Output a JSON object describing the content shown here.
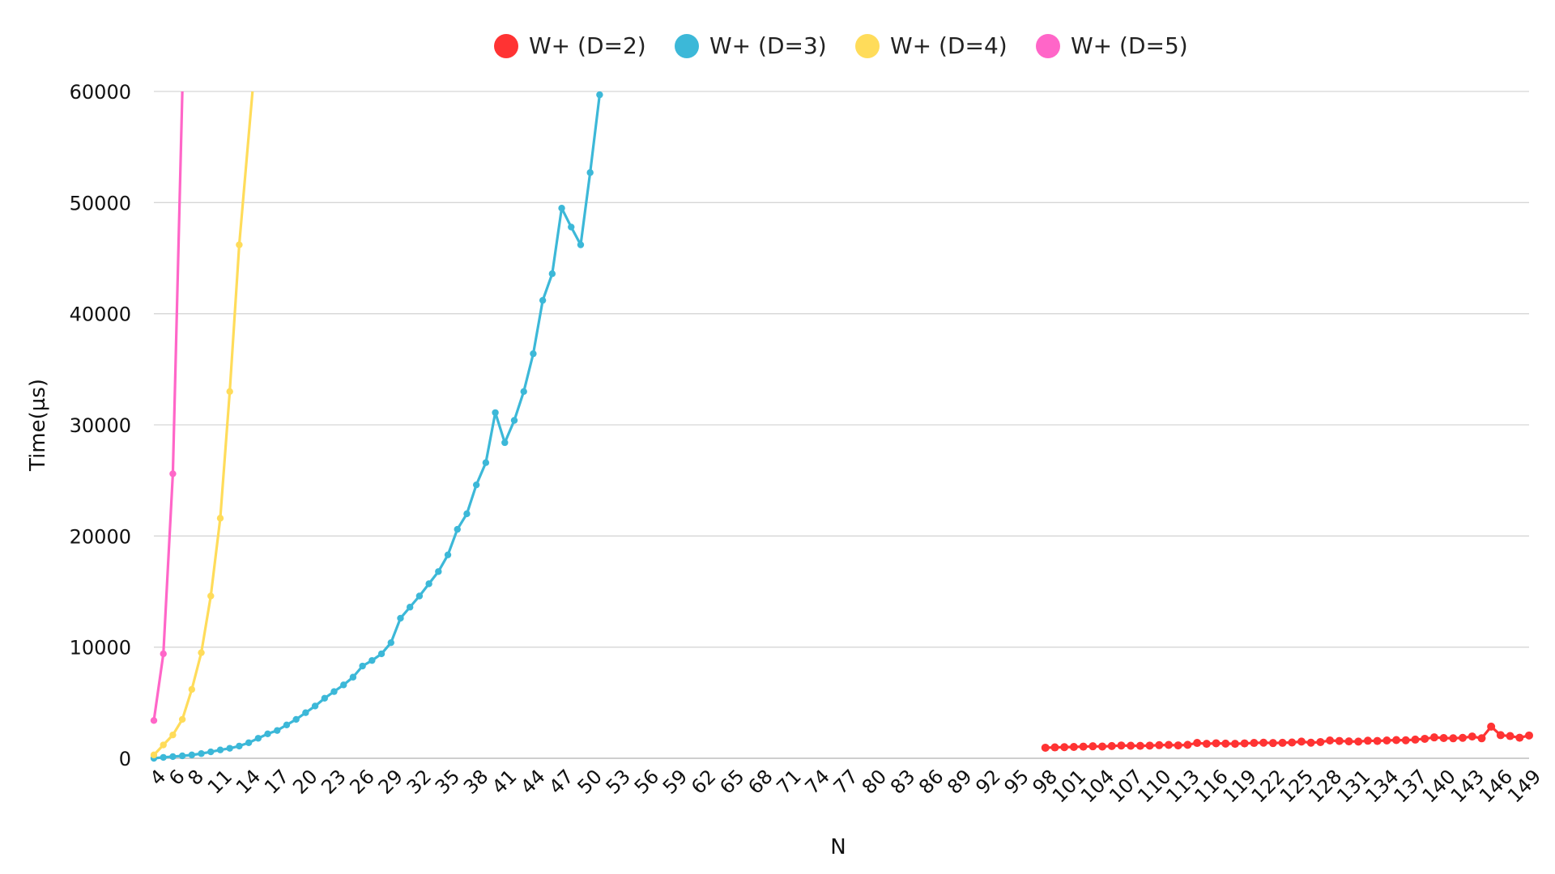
{
  "chart_data": {
    "type": "line",
    "xlabel": "N",
    "ylabel": "Time(µs)",
    "x_min": 4,
    "x_max": 149,
    "x_tick_values": [
      4,
      6,
      8,
      11,
      14,
      17,
      20,
      23,
      26,
      29,
      32,
      35,
      38,
      41,
      44,
      47,
      50,
      53,
      56,
      59,
      62,
      65,
      68,
      71,
      74,
      77,
      80,
      83,
      86,
      89,
      92,
      95,
      98,
      101,
      104,
      107,
      110,
      113,
      116,
      119,
      122,
      125,
      128,
      131,
      134,
      137,
      140,
      143,
      146,
      149
    ],
    "ylim": [
      0,
      60000
    ],
    "y_ticks": [
      0,
      10000,
      20000,
      30000,
      40000,
      50000,
      60000
    ],
    "grid": "horizontal",
    "legend_position": "top-center",
    "series": [
      {
        "name": "W+ (D=2)",
        "color": "#ff3333",
        "x": [
          98,
          99,
          100,
          101,
          102,
          103,
          104,
          105,
          106,
          107,
          108,
          109,
          110,
          111,
          112,
          113,
          114,
          115,
          116,
          117,
          118,
          119,
          120,
          121,
          122,
          123,
          124,
          125,
          126,
          127,
          128,
          129,
          130,
          131,
          132,
          133,
          134,
          135,
          136,
          137,
          138,
          139,
          140,
          141,
          142,
          143,
          144,
          145,
          146,
          147,
          148,
          149
        ],
        "y": [
          950,
          980,
          1000,
          1020,
          1050,
          1080,
          1060,
          1100,
          1150,
          1130,
          1120,
          1140,
          1180,
          1200,
          1160,
          1210,
          1380,
          1300,
          1350,
          1320,
          1300,
          1340,
          1380,
          1400,
          1370,
          1390,
          1420,
          1500,
          1400,
          1460,
          1600,
          1560,
          1520,
          1500,
          1580,
          1560,
          1600,
          1640,
          1620,
          1680,
          1750,
          1880,
          1820,
          1800,
          1840,
          1960,
          1800,
          2850,
          2080,
          2000,
          1850,
          2050
        ]
      },
      {
        "name": "W+ (D=3)",
        "color": "#3cb8d8",
        "x": [
          4,
          5,
          6,
          7,
          8,
          9,
          10,
          11,
          12,
          13,
          14,
          15,
          16,
          17,
          18,
          19,
          20,
          21,
          22,
          23,
          24,
          25,
          26,
          27,
          28,
          29,
          30,
          31,
          32,
          33,
          34,
          35,
          36,
          37,
          38,
          39,
          40,
          41,
          42,
          43,
          44,
          45,
          46,
          47,
          48,
          49,
          50
        ],
        "y": [
          0,
          80,
          150,
          220,
          300,
          420,
          580,
          750,
          900,
          1100,
          1400,
          1800,
          2200,
          2500,
          3000,
          3500,
          4100,
          4700,
          5400,
          6000,
          6600,
          7300,
          8300,
          8800,
          9400,
          10400,
          12600,
          13600,
          14600,
          15700,
          16800,
          18300,
          20600,
          22000,
          24600,
          26600,
          31100,
          28400,
          30400,
          33000,
          36400,
          41200,
          43600,
          49500,
          47800,
          46200,
          52700
        ]
      },
      {
        "name": "W+ (D=4)",
        "color": "#ffdc5a",
        "x": [
          4,
          5,
          6,
          7,
          8,
          9,
          10,
          11,
          12,
          13
        ],
        "y": [
          300,
          1200,
          2100,
          3500,
          6200,
          9500,
          14600,
          21600,
          33000,
          46200
        ]
      },
      {
        "name": "W+ (D=5)",
        "color": "#ff66c8",
        "x": [
          4,
          5,
          6
        ],
        "y": [
          3400,
          9400,
          25600
        ]
      }
    ],
    "d3_last_point": {
      "x": 51,
      "y": 59700
    },
    "d4_exit_x": 14.4,
    "d5_exit_x": 7.0
  }
}
